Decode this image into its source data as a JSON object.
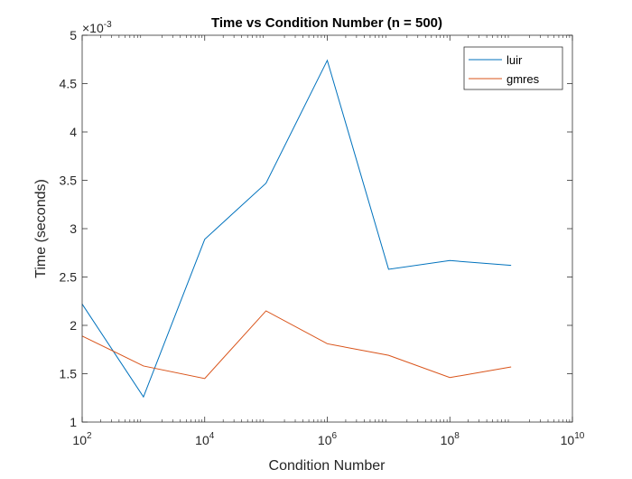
{
  "chart_data": {
    "type": "line",
    "title": "Time vs Condition Number (n = 500)",
    "xlabel": "Condition Number",
    "ylabel": "Time (seconds)",
    "xscale": "log",
    "xlim": [
      100,
      10000000000
    ],
    "ylim": [
      0.001,
      0.005
    ],
    "y_multiplier_label": "×10",
    "y_multiplier_exponent": "-3",
    "x_tick_labels": [
      {
        "value": 100,
        "base": "10",
        "exp": "2"
      },
      {
        "value": 10000,
        "base": "10",
        "exp": "4"
      },
      {
        "value": 1000000,
        "base": "10",
        "exp": "6"
      },
      {
        "value": 100000000,
        "base": "10",
        "exp": "8"
      },
      {
        "value": 10000000000,
        "base": "10",
        "exp": "10"
      }
    ],
    "y_ticks": [
      {
        "value": 0.001,
        "label": "1"
      },
      {
        "value": 0.0015,
        "label": "1.5"
      },
      {
        "value": 0.002,
        "label": "2"
      },
      {
        "value": 0.0025,
        "label": "2.5"
      },
      {
        "value": 0.003,
        "label": "3"
      },
      {
        "value": 0.0035,
        "label": "3.5"
      },
      {
        "value": 0.004,
        "label": "4"
      },
      {
        "value": 0.0045,
        "label": "4.5"
      },
      {
        "value": 0.005,
        "label": "5"
      }
    ],
    "grid": false,
    "legend_position": "top-right",
    "x": [
      100,
      1000,
      10000,
      100000,
      1000000,
      10000000,
      100000000,
      1000000000
    ],
    "series": [
      {
        "name": "luir",
        "color": "#0072BD",
        "values": [
          0.00222,
          0.00126,
          0.00289,
          0.00347,
          0.00474,
          0.00258,
          0.00267,
          0.00262
        ]
      },
      {
        "name": "gmres",
        "color": "#D95319",
        "values": [
          0.00189,
          0.00158,
          0.00145,
          0.00215,
          0.00181,
          0.00169,
          0.00146,
          0.00157
        ]
      }
    ]
  }
}
